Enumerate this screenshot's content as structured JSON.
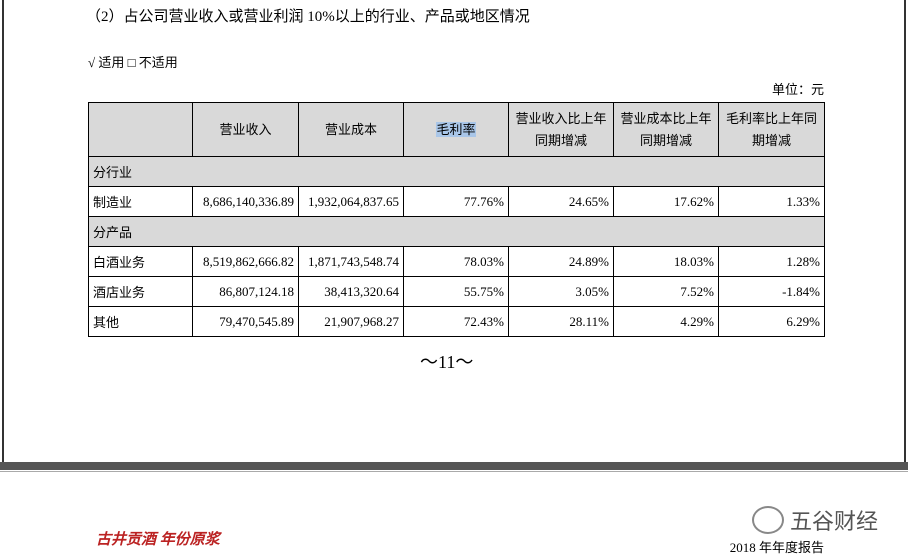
{
  "header": {
    "title": "（2）占公司营业收入或营业利润 10%以上的行业、产品或地区情况",
    "applicable": "√ 适用 □ 不适用",
    "unit": "单位：元"
  },
  "table": {
    "columns": [
      "营业收入",
      "营业成本",
      "毛利率",
      "营业收入比上年同期增减",
      "营业成本比上年同期增减",
      "毛利率比上年同期增减"
    ],
    "rows": [
      [
        "分行业"
      ],
      [
        "制造业",
        "8,686,140,336.89",
        "1,932,064,837.65",
        "77.76%",
        "24.65%",
        "17.62%",
        "1.33%"
      ],
      [
        "分产品"
      ],
      [
        "白酒业务",
        "8,519,862,666.82",
        "1,871,743,548.74",
        "78.03%",
        "24.89%",
        "18.03%",
        "1.28%"
      ],
      [
        "酒店业务",
        "86,807,124.18",
        "38,413,320.64",
        "55.75%",
        "3.05%",
        "7.52%",
        "-1.84%"
      ],
      [
        "其他",
        "79,470,545.89",
        "21,907,968.27",
        "72.43%",
        "28.11%",
        "4.29%",
        "6.29%"
      ]
    ]
  },
  "footer": {
    "page": "～11～",
    "logo": "古井贡酒 年份原浆",
    "report": "2018 年年度报告",
    "watermark": "五谷财经"
  }
}
